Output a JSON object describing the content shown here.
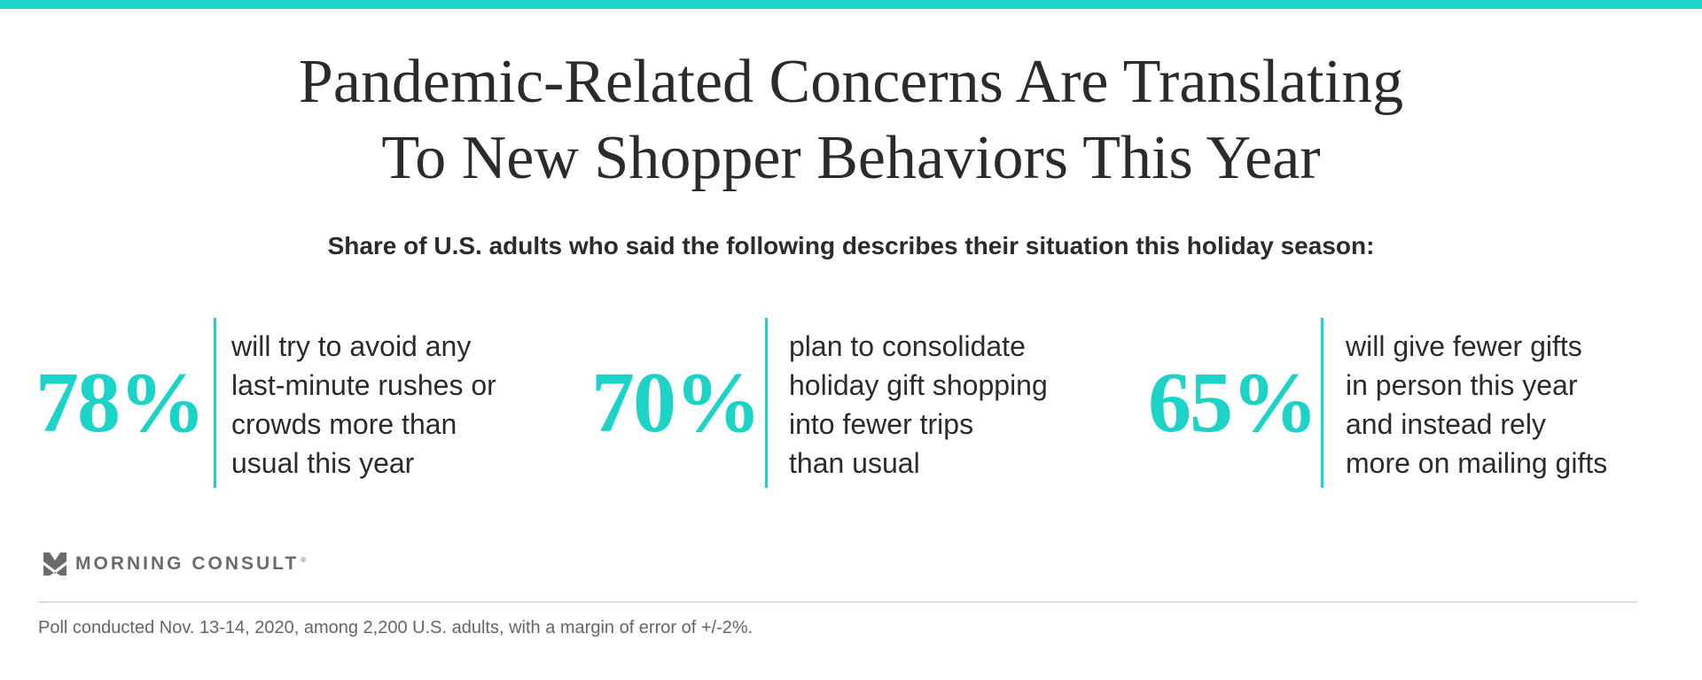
{
  "colors": {
    "accent": "#1bd3c6",
    "text": "#2b2b2b",
    "muted": "#666666"
  },
  "title": {
    "line1": "Pandemic-Related Concerns Are Translating",
    "line2": "To New Shopper Behaviors This Year"
  },
  "subtitle": "Share of U.S. adults who said the following describes their situation this holiday season:",
  "stats": [
    {
      "value": "78%",
      "lines": [
        "will try to avoid any",
        "last-minute rushes or",
        "crowds more than",
        "usual this year"
      ]
    },
    {
      "value": "70%",
      "lines": [
        "plan to consolidate",
        "holiday gift shopping",
        "into fewer trips",
        "than usual"
      ]
    },
    {
      "value": "65%",
      "lines": [
        "will give fewer gifts",
        "in person this year",
        "and instead rely",
        "more on mailing gifts"
      ]
    }
  ],
  "logo": {
    "text": "MORNING CONSULT",
    "reg": "®",
    "icon": "morning-consult-m-icon"
  },
  "footer": "Poll conducted Nov. 13-14, 2020, among 2,200 U.S. adults, with a margin of error of +/-2%."
}
